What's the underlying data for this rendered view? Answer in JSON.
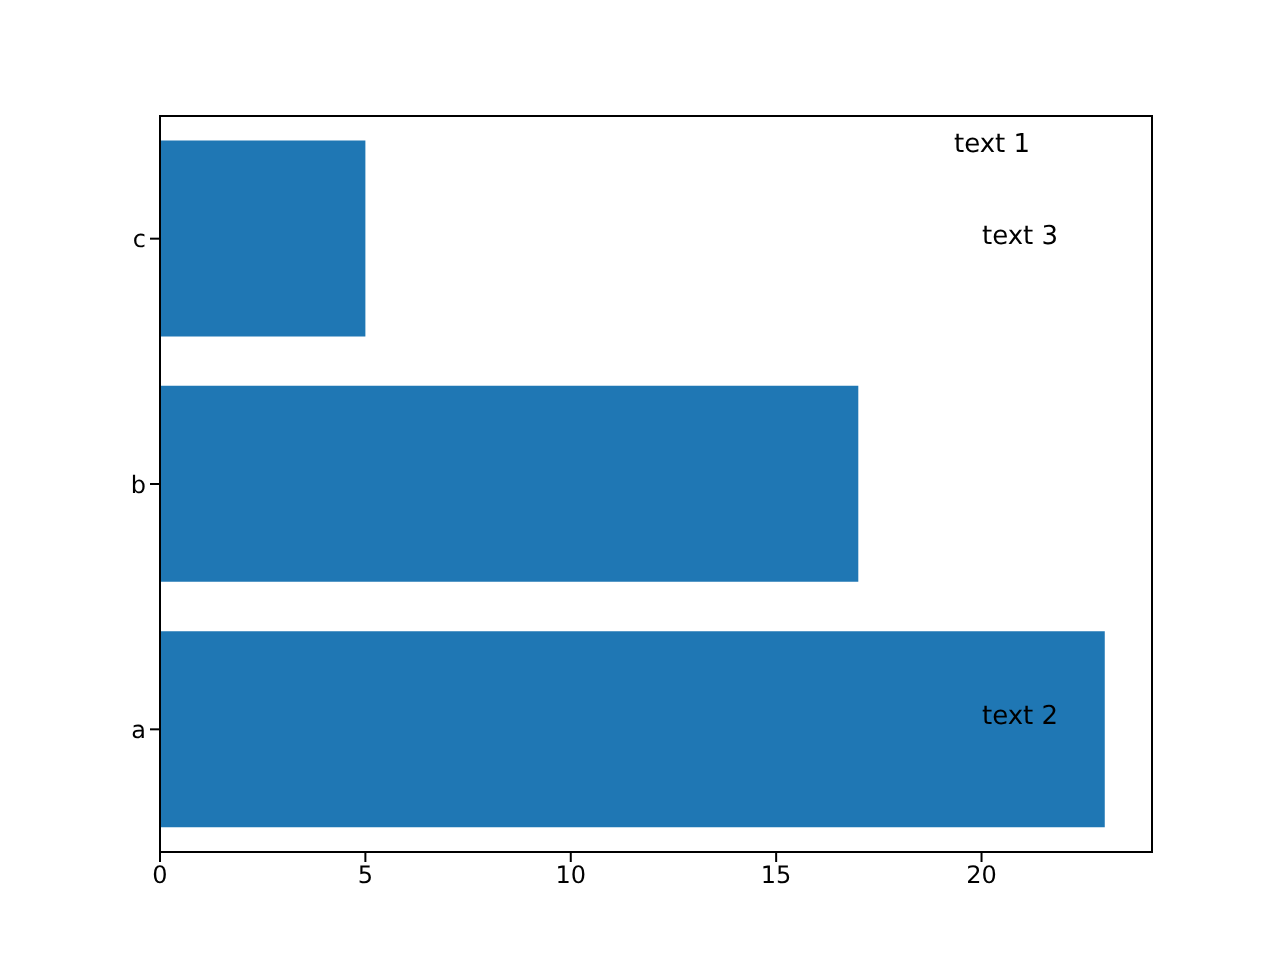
{
  "chart_data": {
    "type": "bar",
    "orientation": "horizontal",
    "categories": [
      "c",
      "b",
      "a"
    ],
    "values": [
      5,
      17,
      23
    ],
    "color": "#1f77b4",
    "xlim": [
      0,
      24.15
    ],
    "xticks": [
      0,
      5,
      10,
      15,
      20
    ],
    "annotations": [
      "text 1",
      "text 3",
      "text 2"
    ]
  }
}
